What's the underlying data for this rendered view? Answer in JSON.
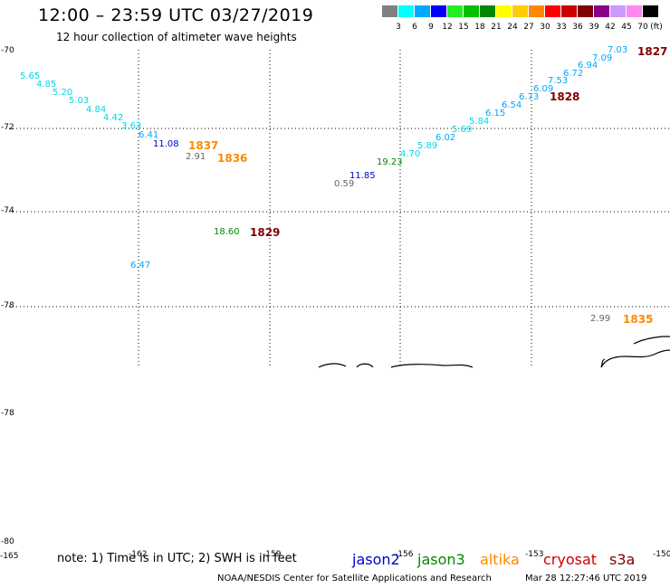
{
  "header": {
    "title": "12:00 – 23:59 UTC 03/27/2019",
    "subtitle": "12 hour collection of altimeter wave heights"
  },
  "color_scale": {
    "unit": "(ft)",
    "bins": [
      {
        "label": "3",
        "color": "#808080"
      },
      {
        "label": "6",
        "color": "#00ffff"
      },
      {
        "label": "9",
        "color": "#00a8ff"
      },
      {
        "label": "12",
        "color": "#0000ff"
      },
      {
        "label": "15",
        "color": "#22ee22"
      },
      {
        "label": "18",
        "color": "#00c000"
      },
      {
        "label": "21",
        "color": "#008800"
      },
      {
        "label": "24",
        "color": "#ffff00"
      },
      {
        "label": "27",
        "color": "#ffcc00"
      },
      {
        "label": "30",
        "color": "#ff8800"
      },
      {
        "label": "33",
        "color": "#ff0000"
      },
      {
        "label": "36",
        "color": "#cc0000"
      },
      {
        "label": "39",
        "color": "#800000"
      },
      {
        "label": "42",
        "color": "#880088"
      },
      {
        "label": "45",
        "color": "#cc99ff"
      },
      {
        "label": "70",
        "color": "#ff88ee"
      },
      {
        "label": "",
        "color": "#000000"
      }
    ]
  },
  "axes": {
    "lat_labels": [
      "-70",
      "-72",
      "-74",
      "-78",
      "-78",
      "-80"
    ],
    "lon_labels": [
      "-165",
      "-162",
      "-159",
      "-156",
      "-153",
      "-150"
    ]
  },
  "observations": [
    {
      "value": "5.65",
      "color": "#00d8e8"
    },
    {
      "value": "4.85",
      "color": "#00d8e8"
    },
    {
      "value": "5.20",
      "color": "#00d8e8"
    },
    {
      "value": "5.03",
      "color": "#00d8e8"
    },
    {
      "value": "4.84",
      "color": "#00d8e8"
    },
    {
      "value": "4.42",
      "color": "#00d8e8"
    },
    {
      "value": "3.63",
      "color": "#00d8e8"
    },
    {
      "value": "6.41",
      "color": "#00a8ff"
    },
    {
      "value": "11.08",
      "color": "#0000cc"
    },
    {
      "value": "2.91",
      "color": "#666666"
    },
    {
      "value": "18.60",
      "color": "#008800"
    },
    {
      "value": "6.47",
      "color": "#00a8ff"
    },
    {
      "value": "0.59",
      "color": "#666666"
    },
    {
      "value": "11.85",
      "color": "#0000cc"
    },
    {
      "value": "19.23",
      "color": "#008800"
    },
    {
      "value": "4.70",
      "color": "#00d8e8"
    },
    {
      "value": "5.89",
      "color": "#00d8e8"
    },
    {
      "value": "6.02",
      "color": "#00a8ff"
    },
    {
      "value": "5.69",
      "color": "#00d8e8"
    },
    {
      "value": "5.84",
      "color": "#00d8e8"
    },
    {
      "value": "6.15",
      "color": "#00a8ff"
    },
    {
      "value": "6.54",
      "color": "#00a8ff"
    },
    {
      "value": "6.73",
      "color": "#00a8ff"
    },
    {
      "value": "6.09",
      "color": "#00a8ff"
    },
    {
      "value": "7.53",
      "color": "#00a8ff"
    },
    {
      "value": "6.72",
      "color": "#00a8ff"
    },
    {
      "value": "6.94",
      "color": "#00a8ff"
    },
    {
      "value": "7.09",
      "color": "#00a8ff"
    },
    {
      "value": "7.03",
      "color": "#00a8ff"
    },
    {
      "value": "2.99",
      "color": "#666666"
    }
  ],
  "pass_times": [
    {
      "time": "1837",
      "color": "#ff8800"
    },
    {
      "time": "1836",
      "color": "#ff8800"
    },
    {
      "time": "1829",
      "color": "#800000"
    },
    {
      "time": "1828",
      "color": "#800000"
    },
    {
      "time": "1827",
      "color": "#800000"
    },
    {
      "time": "1835",
      "color": "#ff8800"
    }
  ],
  "footer": {
    "note": "note: 1) Time is in UTC; 2) SWH is in feet",
    "satellites": [
      {
        "name": "jason2",
        "color": "#0000cc"
      },
      {
        "name": "jason3",
        "color": "#008800"
      },
      {
        "name": "altika",
        "color": "#ff8800"
      },
      {
        "name": "cryosat",
        "color": "#cc0000"
      },
      {
        "name": "s3a",
        "color": "#800000"
      }
    ],
    "credit": "NOAA/NESDIS Center for Satellite Applications and Research",
    "timestamp": "Mar 28 12:27:46 UTC 2019"
  }
}
